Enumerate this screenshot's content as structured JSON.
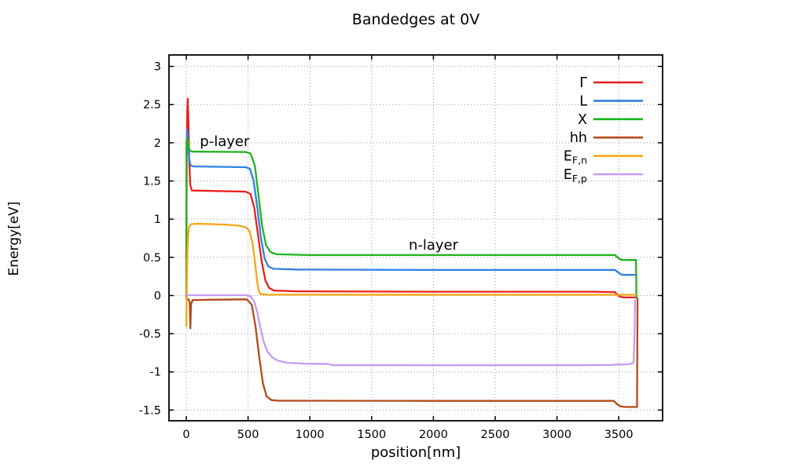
{
  "title": "Bandedges at 0V",
  "chart_data": {
    "type": "line",
    "title": "Bandedges at 0V",
    "xlabel": "position[nm]",
    "ylabel": "Energy[eV]",
    "xlim": [
      -140,
      3855
    ],
    "ylim": [
      -1.64,
      3.15
    ],
    "xticks": [
      0,
      500,
      1000,
      1500,
      2000,
      2500,
      3000,
      3500
    ],
    "yticks": [
      -1.5,
      -1,
      -0.5,
      0,
      0.5,
      1,
      1.5,
      2,
      2.5,
      3
    ],
    "grid": true,
    "grid_color": "#999999",
    "axis_color": "#000000",
    "legend_position": "top-right-inside",
    "annotations": [
      {
        "id": "p-layer",
        "text": "p-layer",
        "x": 110,
        "y": 2.02
      },
      {
        "id": "n-layer",
        "text": "n-layer",
        "x": 1800,
        "y": 0.66
      }
    ],
    "series": [
      {
        "id": "gamma",
        "label_main": "Γ",
        "label_sub": "",
        "color": "#e8211a",
        "points": [
          [
            0,
            0.5
          ],
          [
            4,
            1.8
          ],
          [
            8,
            2.4
          ],
          [
            12,
            2.58
          ],
          [
            17,
            2.3
          ],
          [
            24,
            1.75
          ],
          [
            32,
            1.45
          ],
          [
            45,
            1.375
          ],
          [
            200,
            1.37
          ],
          [
            480,
            1.36
          ],
          [
            520,
            1.33
          ],
          [
            550,
            1.15
          ],
          [
            580,
            0.8
          ],
          [
            610,
            0.45
          ],
          [
            640,
            0.2
          ],
          [
            670,
            0.1
          ],
          [
            710,
            0.065
          ],
          [
            900,
            0.055
          ],
          [
            2000,
            0.05
          ],
          [
            3300,
            0.05
          ],
          [
            3470,
            0.045
          ],
          [
            3495,
            0.0
          ],
          [
            3520,
            -0.02
          ],
          [
            3545,
            -0.025
          ],
          [
            3640,
            -0.025
          ]
        ]
      },
      {
        "id": "l",
        "label_main": "L",
        "label_sub": "",
        "color": "#2e7fe3",
        "points": [
          [
            0,
            1.85
          ],
          [
            5,
            2.1
          ],
          [
            9,
            2.17
          ],
          [
            15,
            2.0
          ],
          [
            24,
            1.78
          ],
          [
            36,
            1.7
          ],
          [
            60,
            1.69
          ],
          [
            480,
            1.68
          ],
          [
            515,
            1.66
          ],
          [
            545,
            1.5
          ],
          [
            575,
            1.15
          ],
          [
            605,
            0.75
          ],
          [
            635,
            0.48
          ],
          [
            665,
            0.38
          ],
          [
            705,
            0.35
          ],
          [
            900,
            0.34
          ],
          [
            2000,
            0.335
          ],
          [
            3470,
            0.335
          ],
          [
            3490,
            0.31
          ],
          [
            3515,
            0.28
          ],
          [
            3540,
            0.27
          ],
          [
            3643,
            0.27
          ]
        ]
      },
      {
        "id": "x",
        "label_main": "X",
        "label_sub": "",
        "color": "#1db31d",
        "points": [
          [
            0,
            -0.03
          ],
          [
            1,
            1.0
          ],
          [
            2,
            2.0
          ],
          [
            8,
            2.06
          ],
          [
            16,
            1.98
          ],
          [
            28,
            1.9
          ],
          [
            45,
            1.885
          ],
          [
            480,
            1.88
          ],
          [
            520,
            1.86
          ],
          [
            555,
            1.7
          ],
          [
            585,
            1.3
          ],
          [
            615,
            0.9
          ],
          [
            645,
            0.66
          ],
          [
            680,
            0.57
          ],
          [
            730,
            0.54
          ],
          [
            1000,
            0.53
          ],
          [
            2500,
            0.53
          ],
          [
            3470,
            0.53
          ],
          [
            3490,
            0.5
          ],
          [
            3515,
            0.47
          ],
          [
            3540,
            0.465
          ],
          [
            3640,
            0.465
          ],
          [
            3643,
            -0.03
          ]
        ]
      },
      {
        "id": "hh",
        "label_main": "hh",
        "label_sub": "",
        "color": "#b5491c",
        "points": [
          [
            0,
            -0.04
          ],
          [
            18,
            -0.05
          ],
          [
            28,
            -0.09
          ],
          [
            33,
            -0.43
          ],
          [
            38,
            -0.12
          ],
          [
            50,
            -0.06
          ],
          [
            200,
            -0.055
          ],
          [
            490,
            -0.05
          ],
          [
            530,
            -0.12
          ],
          [
            560,
            -0.4
          ],
          [
            590,
            -0.8
          ],
          [
            620,
            -1.15
          ],
          [
            650,
            -1.32
          ],
          [
            690,
            -1.37
          ],
          [
            750,
            -1.378
          ],
          [
            2000,
            -1.38
          ],
          [
            3460,
            -1.38
          ],
          [
            3485,
            -1.42
          ],
          [
            3510,
            -1.45
          ],
          [
            3545,
            -1.458
          ],
          [
            3648,
            -1.46
          ],
          [
            3652,
            -0.04
          ]
        ]
      },
      {
        "id": "efn",
        "label_main": "E",
        "label_sub": "F,n",
        "color": "#f5a716",
        "points": [
          [
            0,
            -0.4
          ],
          [
            5,
            0.2
          ],
          [
            10,
            0.6
          ],
          [
            16,
            0.82
          ],
          [
            25,
            0.91
          ],
          [
            40,
            0.935
          ],
          [
            100,
            0.94
          ],
          [
            300,
            0.93
          ],
          [
            420,
            0.915
          ],
          [
            480,
            0.895
          ],
          [
            510,
            0.85
          ],
          [
            535,
            0.7
          ],
          [
            555,
            0.45
          ],
          [
            572,
            0.2
          ],
          [
            585,
            0.07
          ],
          [
            600,
            0.02
          ],
          [
            650,
            0.012
          ],
          [
            2000,
            0.01
          ],
          [
            3640,
            0.01
          ]
        ]
      },
      {
        "id": "efp",
        "label_main": "E",
        "label_sub": "F,p",
        "color": "#c79bf2",
        "points": [
          [
            0,
            0.005
          ],
          [
            480,
            0.005
          ],
          [
            520,
            -0.01
          ],
          [
            550,
            -0.08
          ],
          [
            575,
            -0.22
          ],
          [
            600,
            -0.42
          ],
          [
            625,
            -0.6
          ],
          [
            655,
            -0.73
          ],
          [
            695,
            -0.81
          ],
          [
            745,
            -0.855
          ],
          [
            820,
            -0.88
          ],
          [
            950,
            -0.892
          ],
          [
            1150,
            -0.897
          ],
          [
            1180,
            -0.912
          ],
          [
            2000,
            -0.913
          ],
          [
            3000,
            -0.912
          ],
          [
            3440,
            -0.91
          ],
          [
            3470,
            -0.905
          ],
          [
            3580,
            -0.9
          ],
          [
            3620,
            -0.88
          ],
          [
            3628,
            -0.5
          ],
          [
            3632,
            -0.06
          ]
        ]
      }
    ]
  }
}
